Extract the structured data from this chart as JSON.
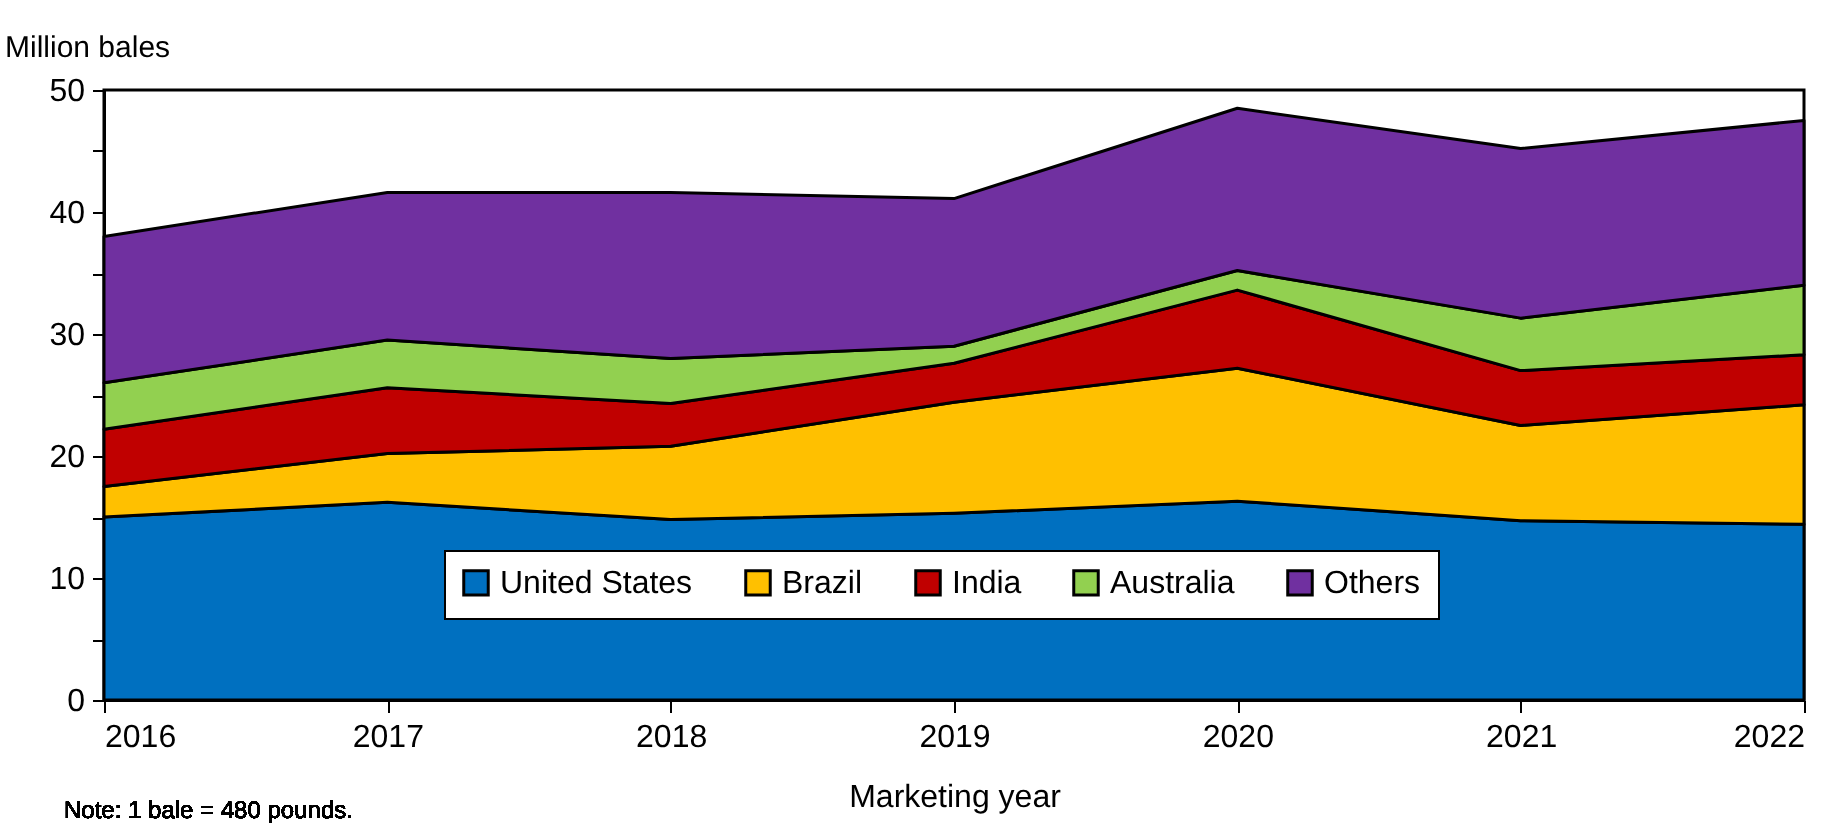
{
  "chart_data": {
    "type": "area",
    "stacked": true,
    "xlabel": "Marketing year",
    "ylabel": "Million bales",
    "x": [
      2016,
      2017,
      2018,
      2019,
      2020,
      2021,
      2022
    ],
    "xlim": [
      2016,
      2022
    ],
    "xticks": [
      2016,
      2017,
      2018,
      2019,
      2020,
      2021,
      2022
    ],
    "ylim": [
      0,
      50
    ],
    "yticks": [
      0,
      {
        "value": 5,
        "label": null
      },
      10,
      {
        "value": 15,
        "label": null
      },
      20,
      {
        "value": 25,
        "label": null
      },
      30,
      {
        "value": 35,
        "label": null
      },
      40,
      {
        "value": 45,
        "label": null
      },
      50
    ],
    "series": [
      {
        "name": "United States",
        "color": "#0070c0",
        "values": [
          15.0,
          16.2,
          14.8,
          15.3,
          16.3,
          14.7,
          14.4
        ]
      },
      {
        "name": "Brazil",
        "color": "#ffc000",
        "values": [
          2.5,
          4.0,
          6.0,
          9.1,
          10.9,
          7.8,
          9.8
        ]
      },
      {
        "name": "India",
        "color": "#c00000",
        "values": [
          4.7,
          5.4,
          3.5,
          3.2,
          6.4,
          4.5,
          4.1
        ]
      },
      {
        "name": "Australia",
        "color": "#92d050",
        "values": [
          3.8,
          3.9,
          3.7,
          1.4,
          1.6,
          4.3,
          5.7
        ]
      },
      {
        "name": "Others",
        "color": "#7030a0",
        "values": [
          12.0,
          12.1,
          13.6,
          12.1,
          13.3,
          13.9,
          13.5
        ]
      }
    ],
    "legend": "bottom",
    "grid": false,
    "annotations": [
      "Note: 1 bale = 480 pounds."
    ]
  }
}
